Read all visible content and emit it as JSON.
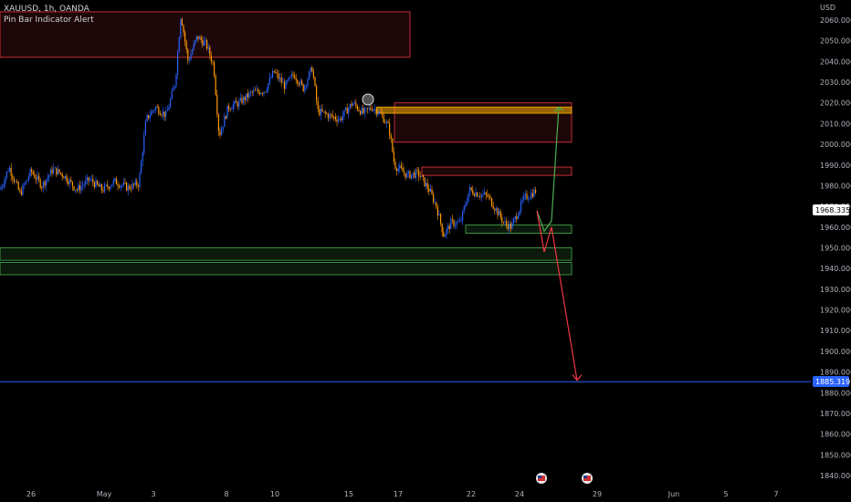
{
  "header": {
    "symbol_line": "XAUUSD, 1h, OANDA",
    "indicator": "Pin Bar Indicator Alert"
  },
  "axis": {
    "currency": "USD"
  },
  "chart_data": {
    "type": "candlestick",
    "ylim": [
      1836,
      2070
    ],
    "y_ticks": [
      2060,
      2050,
      2040,
      2030,
      2020,
      2010,
      2000,
      1990,
      1980,
      1970,
      1960,
      1950,
      1940,
      1930,
      1920,
      1910,
      1900,
      1890,
      1880,
      1870,
      1860,
      1850,
      1840
    ],
    "y_tick_labels": [
      "2060.000",
      "2050.000",
      "2040.000",
      "2030.000",
      "2020.000",
      "2010.000",
      "2000.000",
      "1990.000",
      "1980.000",
      "1970.000",
      "1960.000",
      "1950.000",
      "1940.000",
      "1930.000",
      "1920.000",
      "1910.000",
      "1900.000",
      "1890.000",
      "1880.000",
      "1870.000",
      "1860.000",
      "1850.000",
      "1840.000"
    ],
    "x_ticks": [
      "26",
      "May",
      "3",
      "8",
      "10",
      "15",
      "17",
      "22",
      "24",
      "29",
      "Jun",
      "5",
      "7"
    ],
    "price_path": [
      [
        0,
        1978
      ],
      [
        10,
        1989
      ],
      [
        22,
        1976
      ],
      [
        34,
        1987
      ],
      [
        46,
        1980
      ],
      [
        58,
        1988
      ],
      [
        70,
        1985
      ],
      [
        84,
        1978
      ],
      [
        98,
        1983
      ],
      [
        112,
        1978
      ],
      [
        126,
        1982
      ],
      [
        140,
        1979
      ],
      [
        152,
        1981
      ],
      [
        160,
        2012
      ],
      [
        170,
        2018
      ],
      [
        182,
        2014
      ],
      [
        192,
        2030
      ],
      [
        198,
        2063
      ],
      [
        206,
        2040
      ],
      [
        216,
        2052
      ],
      [
        226,
        2048
      ],
      [
        234,
        2038
      ],
      [
        240,
        2004
      ],
      [
        250,
        2018
      ],
      [
        262,
        2020
      ],
      [
        276,
        2025
      ],
      [
        290,
        2026
      ],
      [
        300,
        2035
      ],
      [
        312,
        2028
      ],
      [
        322,
        2034
      ],
      [
        332,
        2027
      ],
      [
        342,
        2037
      ],
      [
        348,
        2016
      ],
      [
        360,
        2014
      ],
      [
        372,
        2012
      ],
      [
        386,
        2020
      ],
      [
        398,
        2015
      ],
      [
        408,
        2018
      ],
      [
        418,
        2014
      ],
      [
        426,
        2008
      ],
      [
        432,
        1990
      ],
      [
        446,
        1985
      ],
      [
        458,
        1986
      ],
      [
        470,
        1978
      ],
      [
        478,
        1970
      ],
      [
        486,
        1956
      ],
      [
        494,
        1962
      ],
      [
        504,
        1962
      ],
      [
        514,
        1978
      ],
      [
        524,
        1976
      ],
      [
        534,
        1975
      ],
      [
        544,
        1968
      ],
      [
        552,
        1962
      ],
      [
        560,
        1960
      ],
      [
        566,
        1966
      ],
      [
        574,
        1974
      ],
      [
        582,
        1976
      ],
      [
        588,
        1978
      ]
    ],
    "zones": [
      {
        "type": "supply",
        "top": 2064,
        "bottom": 2042
      },
      {
        "type": "supply",
        "top": 2020,
        "bottom": 2001
      },
      {
        "type": "supply",
        "top": 1989,
        "bottom": 1985
      },
      {
        "type": "highlight",
        "top": 2018,
        "bottom": 2015
      },
      {
        "type": "demand",
        "top": 1961,
        "bottom": 1957
      },
      {
        "type": "demand",
        "top": 1950,
        "bottom": 1944
      },
      {
        "type": "demand",
        "top": 1943,
        "bottom": 1937
      }
    ],
    "projection_up": [
      [
        588,
        1968
      ],
      [
        596,
        1958
      ],
      [
        604,
        1963
      ],
      [
        612,
        2018
      ]
    ],
    "projection_down": [
      [
        588,
        1968
      ],
      [
        596,
        1948
      ],
      [
        604,
        1960
      ],
      [
        632,
        1886
      ]
    ],
    "target_level": 1885.319,
    "target_label": "1885.319",
    "last_price": 1968.335,
    "last_price_label": "1968.335",
    "colors": {
      "up": "#2962ff",
      "down": "#ff9800",
      "target_line": "#2962ff",
      "supply": "#f23645",
      "demand": "#4caf50",
      "highlight": "#ffb000",
      "up_arrow": "#4caf50",
      "down_arrow": "#f23645"
    }
  }
}
